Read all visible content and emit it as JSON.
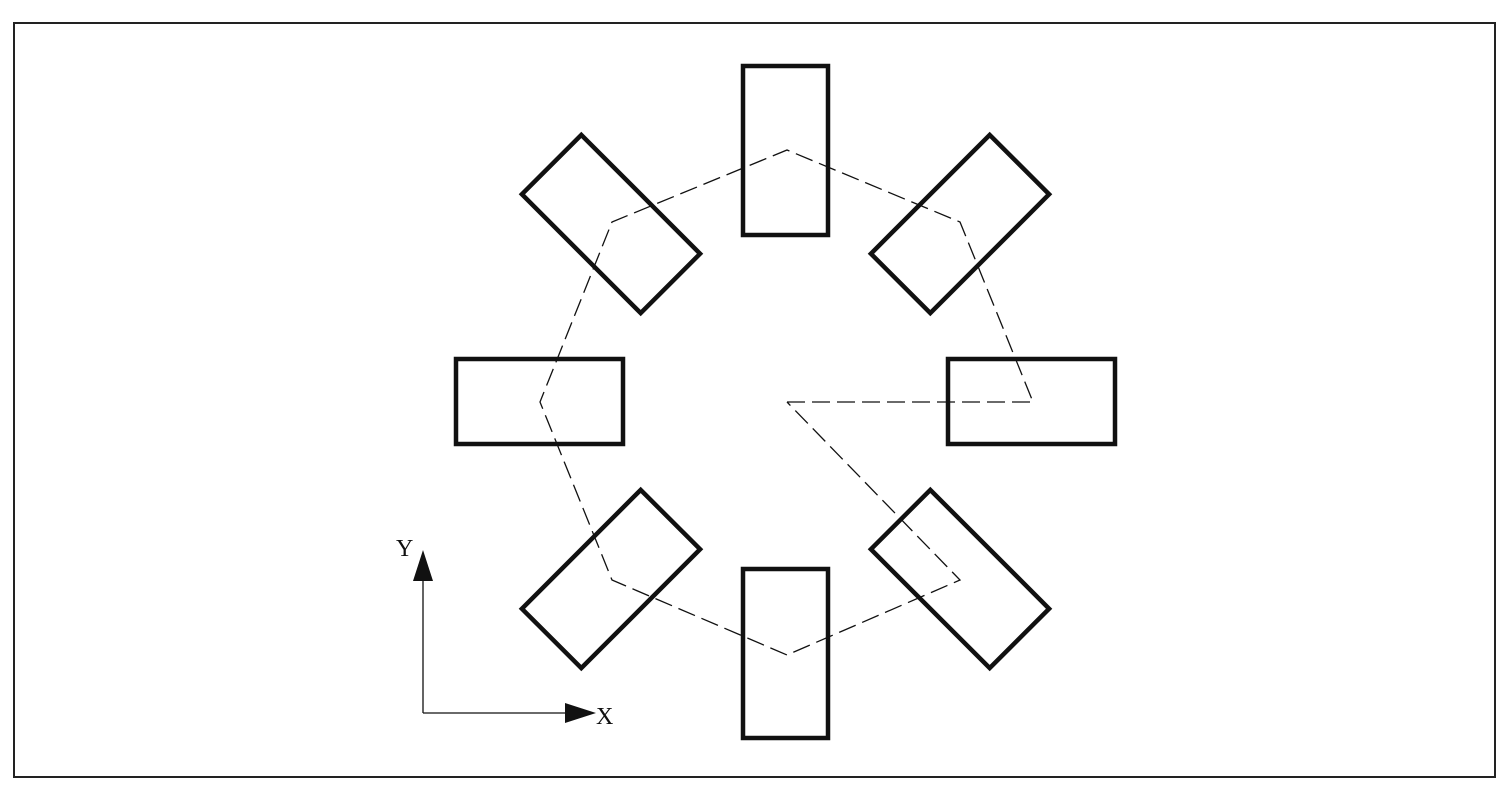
{
  "diagram": {
    "axes": {
      "x_label": "X",
      "y_label": "Y"
    },
    "tool_path_count": 8
  }
}
